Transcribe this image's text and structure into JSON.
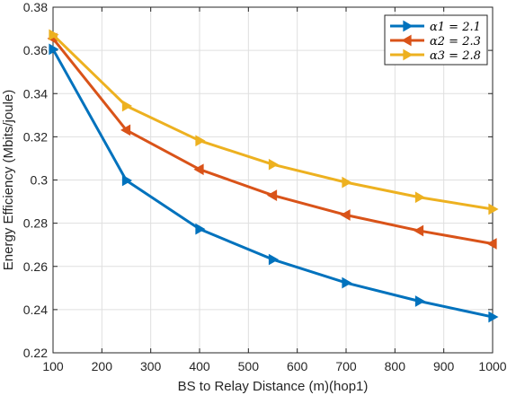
{
  "chart_data": {
    "type": "line",
    "xlabel": "BS to Relay Distance (m)(hop1)",
    "ylabel": "Energy Efficiency (Mbits/joule)",
    "xlim": [
      100,
      1000
    ],
    "ylim": [
      0.22,
      0.38
    ],
    "xticks": [
      100,
      200,
      300,
      400,
      500,
      600,
      700,
      800,
      900,
      1000
    ],
    "yticks": [
      0.22,
      0.24,
      0.26,
      0.28,
      0.3,
      0.32,
      0.34,
      0.36,
      0.38
    ],
    "ytick_labels": [
      "0.22",
      "0.24",
      "0.26",
      "0.28",
      "0.3",
      "0.32",
      "0.34",
      "0.36",
      "0.38"
    ],
    "grid": true,
    "legend_position": "top-right",
    "x": [
      100,
      250,
      400,
      550,
      700,
      850,
      1000
    ],
    "series": [
      {
        "name": "α1 = 2.1",
        "color": "#0072BD",
        "marker": "triangle-right",
        "values": [
          0.3605,
          0.2998,
          0.2773,
          0.2632,
          0.2524,
          0.2439,
          0.2366
        ]
      },
      {
        "name": "α2 = 2.3",
        "color": "#D95319",
        "marker": "triangle-left",
        "values": [
          0.3655,
          0.3231,
          0.3049,
          0.2929,
          0.2838,
          0.2765,
          0.2705
        ]
      },
      {
        "name": "α3 = 2.8",
        "color": "#EDB120",
        "marker": "triangle-right",
        "values": [
          0.3672,
          0.3343,
          0.3182,
          0.3072,
          0.2989,
          0.292,
          0.2865
        ]
      }
    ]
  }
}
